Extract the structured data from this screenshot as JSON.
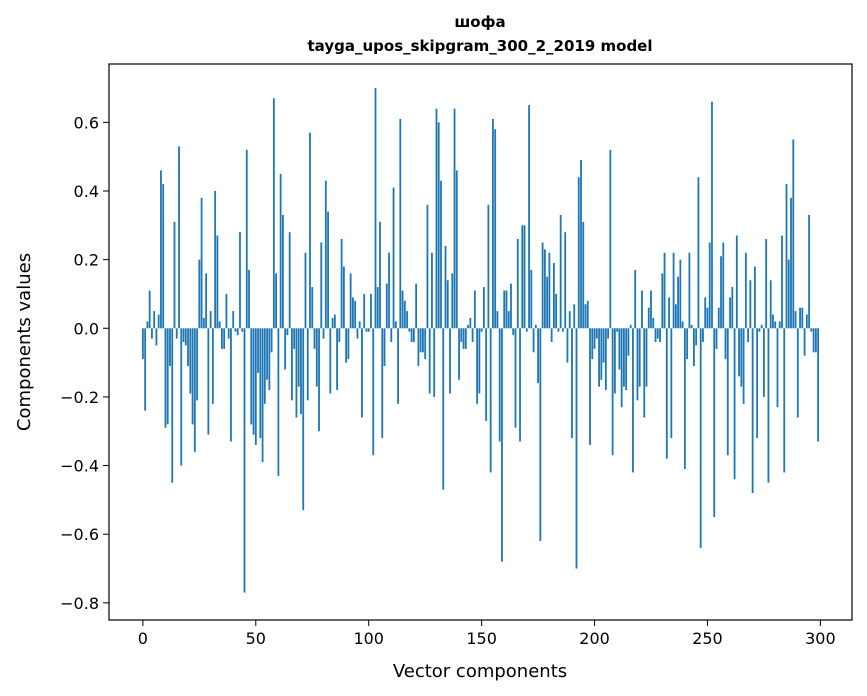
{
  "chart_data": {
    "type": "bar",
    "title": "шофа",
    "subtitle": "tayga_upos_skipgram_300_2_2019 model",
    "xlabel": "Vector components",
    "ylabel": "Components values",
    "xlim": [
      -15,
      314
    ],
    "ylim": [
      -0.85,
      0.77
    ],
    "xticks": [
      0,
      50,
      100,
      150,
      200,
      250,
      300
    ],
    "xtick_labels": [
      "0",
      "50",
      "100",
      "150",
      "200",
      "250",
      "300"
    ],
    "yticks": [
      -0.8,
      -0.6,
      -0.4,
      -0.2,
      0.0,
      0.2,
      0.4,
      0.6
    ],
    "ytick_labels": [
      "−0.8",
      "−0.6",
      "−0.4",
      "−0.2",
      "0.0",
      "0.2",
      "0.4",
      "0.6"
    ],
    "bar_color": "#1f77b4",
    "grid": false,
    "values": [
      -0.09,
      -0.24,
      0.02,
      0.11,
      -0.03,
      0.05,
      -0.05,
      0.04,
      0.46,
      0.42,
      -0.29,
      -0.28,
      -0.11,
      -0.45,
      0.31,
      -0.03,
      0.53,
      -0.4,
      -0.04,
      -0.05,
      -0.11,
      -0.19,
      -0.28,
      -0.36,
      -0.21,
      0.2,
      0.38,
      0.03,
      0.16,
      -0.31,
      0.05,
      -0.22,
      0.4,
      0.27,
      0.02,
      -0.06,
      -0.06,
      0.1,
      -0.03,
      -0.33,
      0.05,
      -0.01,
      -0.02,
      0.28,
      -0.01,
      -0.77,
      0.52,
      0.17,
      -0.28,
      -0.31,
      -0.34,
      -0.13,
      -0.32,
      -0.39,
      -0.22,
      -0.15,
      -0.18,
      -0.07,
      0.67,
      0.16,
      -0.43,
      0.45,
      0.33,
      -0.12,
      -0.02,
      0.28,
      -0.21,
      -0.06,
      -0.26,
      -0.17,
      -0.25,
      -0.53,
      0.22,
      -0.21,
      0.57,
      0.12,
      -0.06,
      -0.17,
      -0.3,
      0.25,
      -0.03,
      0.43,
      0.34,
      -0.19,
      0.03,
      0.04,
      -0.18,
      -0.04,
      0.26,
      0.18,
      -0.1,
      -0.09,
      0.16,
      0.09,
      0.08,
      -0.03,
      0.02,
      -0.26,
      0.1,
      -0.01,
      -0.01,
      0.1,
      -0.37,
      0.7,
      0.12,
      0.31,
      -0.32,
      -0.11,
      0.13,
      0.22,
      -0.04,
      0.41,
      0.02,
      -0.22,
      0.61,
      0.11,
      0.08,
      0.05,
      -0.01,
      -0.04,
      -0.04,
      0.13,
      -0.11,
      -0.07,
      -0.07,
      -0.09,
      0.36,
      -0.19,
      0.22,
      -0.2,
      0.64,
      0.6,
      0.43,
      -0.47,
      0.24,
      0.14,
      -0.19,
      0.16,
      0.64,
      0.46,
      -0.15,
      -0.04,
      -0.06,
      -0.06,
      0.01,
      0.03,
      -0.04,
      0.11,
      -0.22,
      -0.19,
      -0.01,
      0.12,
      -0.27,
      0.36,
      -0.42,
      0.61,
      0.58,
      0.05,
      -0.33,
      -0.68,
      0.11,
      0.11,
      0.05,
      0.13,
      -0.02,
      -0.29,
      0.26,
      -0.33,
      0.3,
      0.3,
      -0.01,
      0.65,
      0.17,
      -0.07,
      0.01,
      -0.16,
      -0.62,
      0.25,
      0.23,
      0.15,
      0.22,
      -0.04,
      0.19,
      0.1,
      -0.01,
      0.33,
      -0.01,
      0.28,
      -0.1,
      0.05,
      -0.32,
      0.07,
      -0.7,
      0.44,
      0.49,
      0.31,
      0.07,
      0.08,
      -0.34,
      -0.09,
      -0.06,
      -0.03,
      -0.17,
      -0.15,
      -0.1,
      -0.18,
      -0.03,
      0.52,
      -0.37,
      -0.19,
      -0.01,
      -0.12,
      -0.23,
      -0.17,
      -0.18,
      -0.08,
      0.01,
      -0.42,
      0.17,
      -0.21,
      -0.17,
      0.11,
      -0.26,
      -0.17,
      0.06,
      0.11,
      0.03,
      -0.04,
      -0.03,
      -0.04,
      0.16,
      0.22,
      -0.38,
      0.09,
      -0.32,
      0.22,
      0.07,
      0.15,
      0.2,
      0.02,
      -0.41,
      -0.09,
      0.22,
      0.01,
      -0.11,
      -0.05,
      0.44,
      -0.64,
      -0.04,
      0.09,
      0.06,
      0.25,
      0.66,
      -0.55,
      -0.06,
      0.06,
      0.21,
      0.25,
      -0.09,
      -0.37,
      0.09,
      0.12,
      -0.44,
      0.27,
      -0.14,
      -0.17,
      -0.22,
      0.22,
      -0.04,
      0.14,
      -0.48,
      0.18,
      -0.32,
      -0.01,
      0.01,
      -0.2,
      0.26,
      -0.45,
      0.14,
      0.04,
      0.02,
      -0.23,
      0.02,
      0.27,
      -0.42,
      0.42,
      0.2,
      0.38,
      0.55,
      0.05,
      -0.26,
      0.06,
      0.06,
      -0.08,
      0.04,
      0.33,
      -0.01,
      -0.07,
      -0.07,
      -0.33
    ]
  }
}
